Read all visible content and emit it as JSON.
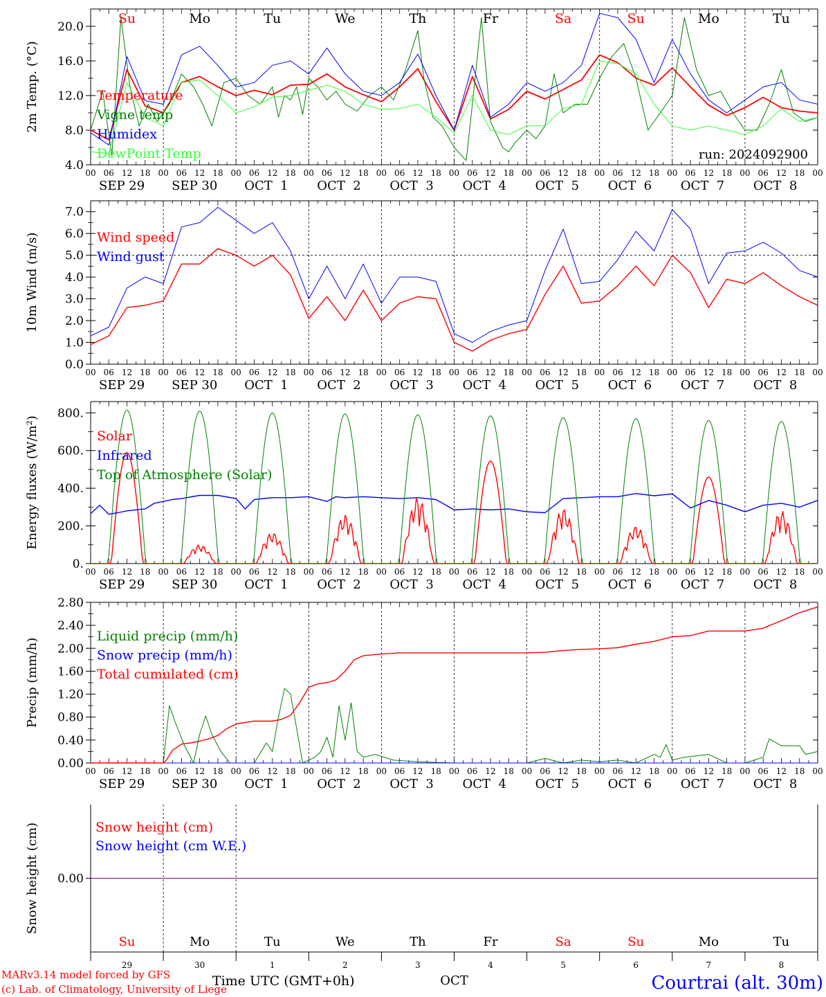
{
  "colors": {
    "red": "#ff0000",
    "green": "#008000",
    "blue": "#0000ff",
    "lightgreen": "#33ff33",
    "axis": "#000000",
    "purple": "#7f007f"
  },
  "time_axis": {
    "hour_ticks": [
      "00",
      "06",
      "12",
      "18"
    ],
    "final_tick": "00",
    "date_labels": [
      "SEP 29",
      "SEP 30",
      "OCT  1",
      "OCT  2",
      "OCT  3",
      "OCT  4",
      "OCT  5",
      "OCT  6",
      "OCT  7",
      "OCT  8"
    ],
    "day_names": [
      "Su",
      "Mo",
      "Tu",
      "We",
      "Th",
      "Fr",
      "Sa",
      "Su",
      "Mo",
      "Tu"
    ],
    "day_name_colors": [
      "red",
      "black",
      "black",
      "black",
      "black",
      "black",
      "red",
      "red",
      "black",
      "black"
    ],
    "day_numbers": [
      "29",
      "30",
      "1",
      "2",
      "3",
      "4",
      "5",
      "6",
      "7",
      "8"
    ],
    "month_label": "OCT",
    "xlabel": "Time UTC (GMT+0h)"
  },
  "footer": {
    "credit1": "MARv3.14 model forced by GFS",
    "credit2": "(c) Lab. of Climatology, University of Liege",
    "location": "Courtrai (alt. 30m)"
  },
  "chart_data": [
    {
      "type": "line",
      "ylabel": "2m Temp. (°C)",
      "ylim": [
        4.0,
        22.0
      ],
      "yticks": [
        "4.0",
        "8.0",
        "12.0",
        "16.0",
        "20.0"
      ],
      "annotation": "run: 2024092900",
      "x_unit": "hours since 2024-09-29 00 UTC",
      "series": [
        {
          "name": "Temperature",
          "color": "#ff0000",
          "width": 1.8,
          "x": [
            0,
            6,
            12,
            18,
            24,
            30,
            36,
            42,
            48,
            54,
            60,
            66,
            72,
            78,
            84,
            90,
            96,
            102,
            108,
            114,
            120,
            126,
            132,
            138,
            144,
            150,
            156,
            162,
            168,
            174,
            180,
            186,
            192,
            198,
            204,
            210,
            216,
            222,
            228,
            234,
            240
          ],
          "y": [
            8.0,
            6.9,
            15.0,
            10.8,
            10.0,
            13.5,
            14.2,
            13.0,
            12.0,
            12.6,
            12.1,
            13.2,
            13.3,
            14.5,
            13.0,
            12.1,
            11.3,
            13.0,
            15.1,
            11.3,
            8.0,
            14.2,
            9.3,
            10.4,
            12.5,
            11.6,
            12.7,
            13.8,
            16.7,
            15.8,
            14.0,
            13.2,
            15.2,
            13.0,
            10.9,
            9.7,
            10.6,
            11.8,
            10.6,
            10.2,
            10.0
          ]
        },
        {
          "name": "Vigne temp",
          "color": "#008000",
          "width": 1.0,
          "x": [
            0,
            4,
            7,
            10,
            13,
            16,
            19,
            22,
            26,
            30,
            34,
            37,
            40,
            44,
            48,
            52,
            56,
            60,
            62,
            64,
            66,
            68,
            70,
            72,
            75,
            78,
            81,
            84,
            88,
            92,
            96,
            100,
            104,
            108,
            110,
            113,
            116,
            120,
            124,
            126,
            129,
            132,
            136,
            138,
            140,
            144,
            147,
            150,
            153,
            156,
            160,
            164,
            168,
            172,
            176,
            178,
            180,
            182,
            184,
            188,
            192,
            196,
            200,
            204,
            208,
            212,
            216,
            220,
            224,
            228,
            232,
            236,
            240
          ],
          "y": [
            8.0,
            12.5,
            5.0,
            21.0,
            13.0,
            8.5,
            11.0,
            9.0,
            11.0,
            14.5,
            13.0,
            11.0,
            8.5,
            13.5,
            14.0,
            12.0,
            11.0,
            13.0,
            9.5,
            12.0,
            11.5,
            13.0,
            9.8,
            14.0,
            13.0,
            11.5,
            12.5,
            11.0,
            10.2,
            12.0,
            13.0,
            11.5,
            15.0,
            19.5,
            14.0,
            9.5,
            8.5,
            6.0,
            4.5,
            11.0,
            21.0,
            9.0,
            6.0,
            5.5,
            6.5,
            8.0,
            7.0,
            8.5,
            14.5,
            10.0,
            11.0,
            11.0,
            14.0,
            16.5,
            18.0,
            16.0,
            14.0,
            11.0,
            8.0,
            10.0,
            12.0,
            21.0,
            15.0,
            12.0,
            12.5,
            10.0,
            8.0,
            8.0,
            11.0,
            15.0,
            10.0,
            9.0,
            9.5
          ]
        },
        {
          "name": "Humidex",
          "color": "#0000ff",
          "width": 1.0,
          "x": [
            0,
            6,
            12,
            18,
            24,
            30,
            36,
            42,
            48,
            54,
            60,
            66,
            72,
            78,
            84,
            90,
            96,
            102,
            108,
            114,
            120,
            126,
            132,
            138,
            144,
            150,
            156,
            162,
            168,
            174,
            180,
            186,
            192,
            198,
            204,
            210,
            216,
            222,
            228,
            234,
            240
          ],
          "y": [
            7.7,
            6.3,
            16.5,
            11.4,
            11.0,
            16.7,
            17.7,
            15.5,
            13.0,
            13.5,
            15.5,
            16.0,
            14.5,
            17.5,
            14.5,
            12.5,
            12.0,
            13.5,
            16.8,
            12.0,
            8.0,
            15.5,
            9.5,
            11.0,
            13.5,
            12.5,
            13.5,
            15.5,
            21.5,
            21.0,
            18.5,
            13.5,
            18.5,
            14.5,
            11.5,
            10.0,
            11.5,
            13.0,
            13.5,
            11.5,
            11.0
          ]
        },
        {
          "name": "DewPoint Temp",
          "color": "#33ff33",
          "width": 1.0,
          "x": [
            0,
            6,
            12,
            18,
            24,
            30,
            36,
            42,
            48,
            54,
            60,
            66,
            72,
            78,
            84,
            90,
            96,
            102,
            108,
            114,
            120,
            126,
            132,
            138,
            144,
            150,
            156,
            162,
            168,
            174,
            180,
            186,
            192,
            198,
            204,
            210,
            216,
            222,
            228,
            234,
            240
          ],
          "y": [
            5.5,
            5.3,
            13.5,
            9.5,
            8.5,
            13.5,
            13.8,
            12.0,
            10.0,
            10.7,
            11.8,
            12.0,
            12.6,
            13.2,
            12.5,
            11.0,
            10.4,
            10.5,
            11.0,
            9.5,
            7.7,
            12.0,
            8.0,
            7.5,
            8.5,
            8.5,
            10.5,
            11.0,
            16.0,
            15.7,
            14.5,
            11.0,
            8.5,
            8.0,
            8.5,
            8.0,
            7.5,
            8.5,
            10.5,
            9.0,
            9.5
          ]
        }
      ]
    },
    {
      "type": "line",
      "ylabel": "10m Wind (m/s)",
      "ylim": [
        0.0,
        7.5
      ],
      "yticks": [
        "0.0",
        "1.0",
        "2.0",
        "3.0",
        "4.0",
        "5.0",
        "6.0",
        "7.0"
      ],
      "reference_line": 5.0,
      "series": [
        {
          "name": "Wind speed",
          "color": "#ff0000",
          "width": 1.4,
          "x": [
            0,
            6,
            12,
            18,
            24,
            30,
            36,
            42,
            48,
            54,
            60,
            66,
            72,
            78,
            84,
            90,
            96,
            102,
            108,
            114,
            120,
            126,
            132,
            138,
            144,
            150,
            156,
            162,
            168,
            174,
            180,
            186,
            192,
            198,
            204,
            210,
            216,
            222,
            228,
            234,
            240
          ],
          "y": [
            0.9,
            1.3,
            2.6,
            2.7,
            2.9,
            4.6,
            4.6,
            5.3,
            5.0,
            4.5,
            5.0,
            4.1,
            2.1,
            3.1,
            2.0,
            3.4,
            2.0,
            2.8,
            3.1,
            3.0,
            1.0,
            0.6,
            1.1,
            1.4,
            1.6,
            3.2,
            4.5,
            2.8,
            2.9,
            3.6,
            4.5,
            3.6,
            5.0,
            4.2,
            2.6,
            3.9,
            3.7,
            4.2,
            3.6,
            3.1,
            2.7
          ]
        },
        {
          "name": "Wind gust",
          "color": "#0000ff",
          "width": 1.0,
          "x": [
            0,
            6,
            12,
            18,
            24,
            30,
            36,
            42,
            48,
            54,
            60,
            66,
            72,
            78,
            84,
            90,
            96,
            102,
            108,
            114,
            120,
            126,
            132,
            138,
            144,
            150,
            156,
            162,
            168,
            174,
            180,
            186,
            192,
            198,
            204,
            210,
            216,
            222,
            228,
            234,
            240
          ],
          "y": [
            1.3,
            1.7,
            3.5,
            4.0,
            3.7,
            6.3,
            6.5,
            7.2,
            6.6,
            6.0,
            6.5,
            5.2,
            3.0,
            4.5,
            3.0,
            4.6,
            2.8,
            4.0,
            4.0,
            3.8,
            1.4,
            1.0,
            1.5,
            1.8,
            2.0,
            4.3,
            6.2,
            3.7,
            3.8,
            4.8,
            6.1,
            5.2,
            7.1,
            6.2,
            3.7,
            5.1,
            5.2,
            5.6,
            5.1,
            4.3,
            4.0
          ]
        }
      ]
    },
    {
      "type": "line",
      "ylabel": "Energy fluxes (W/m²)",
      "ylim": [
        0,
        860
      ],
      "yticks": [
        "0.",
        "200.",
        "400.",
        "600.",
        "800."
      ],
      "series": [
        {
          "name": "Solar",
          "color": "#ff0000",
          "width": 1.4,
          "peaks": [
            590,
            100,
            165,
            260,
            355,
            545,
            295,
            200,
            460,
            280
          ]
        },
        {
          "name": "Infrared",
          "color": "#0000ff",
          "width": 1.4,
          "x": [
            0,
            3,
            6,
            9,
            12,
            18,
            21,
            24,
            27,
            30,
            36,
            42,
            48,
            51,
            54,
            60,
            66,
            72,
            78,
            81,
            84,
            90,
            96,
            102,
            108,
            114,
            120,
            126,
            132,
            138,
            144,
            150,
            156,
            162,
            168,
            174,
            180,
            186,
            192,
            198,
            204,
            210,
            216,
            222,
            228,
            234,
            240
          ],
          "y": [
            265,
            310,
            262,
            270,
            280,
            290,
            320,
            330,
            340,
            345,
            362,
            362,
            345,
            290,
            340,
            350,
            350,
            355,
            330,
            355,
            350,
            355,
            350,
            345,
            350,
            340,
            285,
            290,
            285,
            290,
            275,
            270,
            345,
            350,
            355,
            355,
            372,
            360,
            370,
            295,
            335,
            310,
            275,
            310,
            320,
            300,
            335
          ]
        },
        {
          "name": "Top of Atmosphere (Solar)",
          "color": "#008000",
          "width": 1.0,
          "peaks": [
            815,
            810,
            800,
            795,
            790,
            785,
            775,
            770,
            760,
            755
          ]
        }
      ]
    },
    {
      "type": "line",
      "ylabel": "Precip (mm/h)",
      "ylim": [
        0.0,
        2.8
      ],
      "yticks": [
        "0.00",
        "0.40",
        "0.80",
        "1.20",
        "1.60",
        "2.00",
        "2.40",
        "2.80"
      ],
      "series": [
        {
          "name": "Liquid precip (mm/h)",
          "color": "#008000",
          "width": 1.0,
          "x": [
            0,
            24,
            26,
            28,
            31,
            34,
            36,
            38,
            40,
            43,
            46,
            48,
            54,
            58,
            60,
            62,
            64,
            66,
            68,
            70,
            72,
            74,
            76,
            78,
            80,
            82,
            84,
            86,
            88,
            90,
            94,
            100,
            108,
            120,
            144,
            150,
            156,
            162,
            168,
            174,
            180,
            186,
            188,
            190,
            192,
            196,
            204,
            210,
            216,
            222,
            224,
            228,
            234,
            236,
            240
          ],
          "y": [
            0,
            0,
            1.0,
            0.7,
            0.3,
            0,
            0.5,
            0.82,
            0.5,
            0.2,
            0,
            0,
            0,
            0.35,
            0.2,
            0.8,
            1.3,
            1.2,
            0.6,
            0,
            0.05,
            0.1,
            0.2,
            0.45,
            0.1,
            1.0,
            0.4,
            1.05,
            0.2,
            0.1,
            0.15,
            0.05,
            0.02,
            0,
            0,
            0.08,
            0,
            0.05,
            0.02,
            0.05,
            0,
            0.15,
            0.1,
            0.32,
            0.05,
            0.1,
            0.15,
            0,
            0,
            0.1,
            0.42,
            0.3,
            0.3,
            0.15,
            0.2
          ]
        },
        {
          "name": "Snow precip (mm/h)",
          "color": "#0000ff",
          "width": 1.0,
          "x": [
            0,
            240
          ],
          "y": [
            0,
            0
          ]
        },
        {
          "name": "Total cumulated (cm)",
          "color": "#ff0000",
          "width": 1.4,
          "x": [
            0,
            24,
            25,
            27,
            30,
            33,
            36,
            39,
            42,
            45,
            48,
            54,
            60,
            63,
            66,
            69,
            72,
            75,
            78,
            81,
            84,
            87,
            90,
            96,
            102,
            108,
            120,
            132,
            144,
            150,
            156,
            162,
            168,
            174,
            180,
            186,
            192,
            198,
            204,
            210,
            216,
            222,
            228,
            234,
            240
          ],
          "y": [
            0,
            0,
            0.05,
            0.22,
            0.33,
            0.35,
            0.38,
            0.42,
            0.48,
            0.6,
            0.68,
            0.73,
            0.73,
            0.76,
            0.83,
            1.05,
            1.32,
            1.38,
            1.4,
            1.45,
            1.6,
            1.8,
            1.87,
            1.9,
            1.92,
            1.92,
            1.92,
            1.92,
            1.92,
            1.93,
            1.96,
            1.98,
            1.99,
            2.01,
            2.07,
            2.12,
            2.2,
            2.22,
            2.3,
            2.3,
            2.3,
            2.35,
            2.48,
            2.62,
            2.72
          ]
        }
      ]
    },
    {
      "type": "line",
      "ylabel": "Snow height (cm)",
      "ylim": [
        -1.0,
        1.0
      ],
      "yticks": [
        "0.00"
      ],
      "series": [
        {
          "name": "Snow height (cm)",
          "color": "#ff0000",
          "width": 1.0,
          "x": [
            0,
            240
          ],
          "y": [
            0,
            0
          ]
        },
        {
          "name": "Snow height (cm W.E.)",
          "color": "#0000ff",
          "width": 1.0,
          "x": [
            0,
            240
          ],
          "y": [
            0,
            0
          ]
        }
      ]
    }
  ]
}
